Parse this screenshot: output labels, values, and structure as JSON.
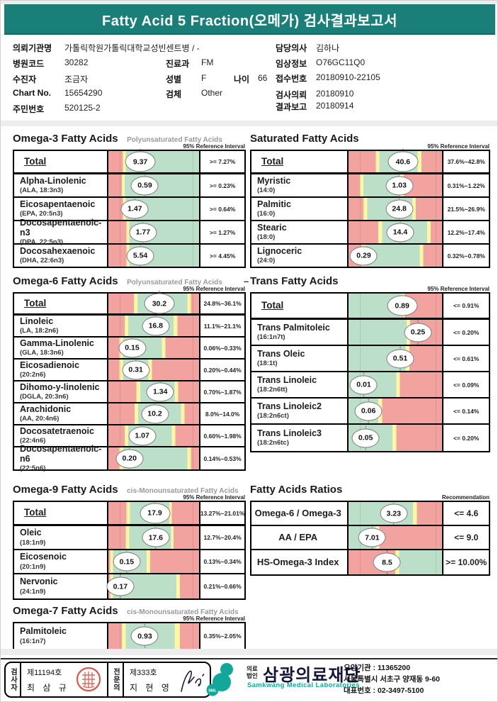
{
  "title": "Fatty Acid 5 Fraction(오메가) 검사결과보고서",
  "patient": {
    "left": [
      {
        "label": "의뢰기관명",
        "value": "가톨릭학원가톨릭대학교성빈센트병 / -"
      },
      {
        "label": "병원코드",
        "value": "30282"
      },
      {
        "label": "수진자",
        "value": "조금자"
      },
      {
        "label": "Chart No.",
        "value": "15654290"
      },
      {
        "label": "주민번호",
        "value": "520125-2"
      }
    ],
    "mid": {
      "dept_label": "진료과",
      "dept_value": "FM",
      "sex_label": "성별",
      "sex_value": "F",
      "age_label": "나이",
      "age_value": "66",
      "spec_label": "검체",
      "spec_value": "Other"
    },
    "right": [
      {
        "label": "담당의사",
        "value": "김하나"
      },
      {
        "label": "임상정보",
        "value": "O76GC11Q0"
      },
      {
        "label": "접수번호",
        "value": "20180910-22105"
      },
      {
        "label": "검사의뢰",
        "value": "20180910"
      },
      {
        "label": "결과보고",
        "value": "20180914"
      }
    ]
  },
  "colors": {
    "r": "#F2A3A0",
    "y": "#FBF7A3",
    "g": "#BBDFC9",
    "teal": "#1A7F79",
    "logo_teal": "#12A79B",
    "seal_red": "#D4392B"
  },
  "chart_data": [
    {
      "type": "table",
      "title": "Omega-3 Fatty Acids",
      "subtitle": "Polyunsaturated Fatty Acids",
      "right_label": "95% Reference Interval",
      "rows": [
        {
          "label": "Total",
          "sub": "",
          "value": "9.37",
          "ref": ">= 7.27%",
          "m": 35,
          "total": true,
          "zones": [
            [
              "r",
              16
            ],
            [
              "y",
              19
            ],
            [
              "g",
              100
            ]
          ]
        },
        {
          "label": "Alpha-Linolenic",
          "sub": "(ALA, 18:3n3)",
          "value": "0.59",
          "ref": ">= 0.23%",
          "m": 40,
          "zones": [
            [
              "r",
              15
            ],
            [
              "y",
              18
            ],
            [
              "g",
              100
            ]
          ]
        },
        {
          "label": "Eicosapentaenoic",
          "sub": "(EPA, 20:5n3)",
          "value": "1.47",
          "ref": ">= 0.64%",
          "m": 29,
          "zones": [
            [
              "r",
              16
            ],
            [
              "y",
              19
            ],
            [
              "g",
              100
            ]
          ]
        },
        {
          "label": "Docosapentaenoic-n3",
          "sub": "(DPA, 22:5n3)",
          "value": "1.77",
          "ref": ">= 1.27%",
          "m": 38,
          "zones": [
            [
              "r",
              20
            ],
            [
              "y",
              23
            ],
            [
              "g",
              100
            ]
          ]
        },
        {
          "label": "Docosahexaenoic",
          "sub": "(DHA, 22:6n3)",
          "value": "5.54",
          "ref": ">= 4.45%",
          "m": 35,
          "zones": [
            [
              "r",
              20
            ],
            [
              "y",
              23
            ],
            [
              "g",
              100
            ]
          ]
        }
      ]
    },
    {
      "type": "table",
      "title": "Saturated Fatty Acids",
      "subtitle": "",
      "right_label": "95% Reference Interval",
      "rows": [
        {
          "label": "Total",
          "sub": "",
          "value": "40.6",
          "ref": "37.6%~42.8%",
          "m": 58,
          "total": true,
          "zones": [
            [
              "r",
              29
            ],
            [
              "y",
              33
            ],
            [
              "g",
              74
            ],
            [
              "y",
              78
            ],
            [
              "r",
              100
            ]
          ]
        },
        {
          "label": "Myristic",
          "sub": "(14:0)",
          "value": "1.03",
          "ref": "0.31%~1.22%",
          "m": 54,
          "zones": [
            [
              "r",
              12
            ],
            [
              "y",
              16
            ],
            [
              "g",
              55
            ],
            [
              "y",
              59
            ],
            [
              "r",
              100
            ]
          ]
        },
        {
          "label": "Palmitic",
          "sub": "(16:0)",
          "value": "24.8",
          "ref": "21.5%~26.9%",
          "m": 54,
          "zones": [
            [
              "r",
              16
            ],
            [
              "y",
              20
            ],
            [
              "g",
              68
            ],
            [
              "y",
              72
            ],
            [
              "r",
              100
            ]
          ]
        },
        {
          "label": "Stearic",
          "sub": "(18:0)",
          "value": "14.4",
          "ref": "12.2%~17.4%",
          "m": 55,
          "zones": [
            [
              "r",
              32
            ],
            [
              "y",
              36
            ],
            [
              "g",
              84
            ],
            [
              "y",
              88
            ],
            [
              "r",
              100
            ]
          ]
        },
        {
          "label": "Lignoceric",
          "sub": "(24:0)",
          "value": "0.29",
          "ref": "0.32%~0.78%",
          "m": 16,
          "zones": [
            [
              "r",
              14
            ],
            [
              "y",
              18
            ],
            [
              "g",
              76
            ],
            [
              "y",
              80
            ],
            [
              "r",
              100
            ]
          ]
        }
      ]
    },
    {
      "type": "table",
      "title": "Omega-6 Fatty Acids",
      "subtitle": "Polyunsaturated Fatty Acids",
      "right_label": "95% Reference Interval",
      "rows": [
        {
          "label": "Total",
          "sub": "",
          "value": "30.2",
          "ref": "24.8%~36.1%",
          "m": 56,
          "total": true,
          "zones": [
            [
              "r",
              28
            ],
            [
              "y",
              32
            ],
            [
              "g",
              87
            ],
            [
              "y",
              91
            ],
            [
              "r",
              100
            ]
          ]
        },
        {
          "label": "Linoleic",
          "sub": "(LA, 18:2n6)",
          "value": "16.8",
          "ref": "11.1%~21.1%",
          "m": 52,
          "zones": [
            [
              "r",
              18
            ],
            [
              "y",
              22
            ],
            [
              "g",
              72
            ],
            [
              "y",
              76
            ],
            [
              "r",
              100
            ]
          ]
        },
        {
          "label": "Gamma-Linolenic",
          "sub": "(GLA, 18:3n6)",
          "value": "0.15",
          "ref": "0.06%~0.33%",
          "m": 26,
          "zones": [
            [
              "r",
              12
            ],
            [
              "y",
              16
            ],
            [
              "g",
              59
            ],
            [
              "y",
              63
            ],
            [
              "r",
              100
            ]
          ]
        },
        {
          "label": "Eicosadienoic",
          "sub": "(20:2n6)",
          "value": "0.31",
          "ref": "0.20%~0.44%",
          "m": 30,
          "zones": [
            [
              "r",
              12
            ],
            [
              "y",
              16
            ],
            [
              "g",
              44
            ],
            [
              "y",
              48
            ],
            [
              "r",
              100
            ]
          ]
        },
        {
          "label": "Dihomo-y-linolenic",
          "sub": "(DGLA, 20:3n6)",
          "value": "1.34",
          "ref": "0.70%~1.87%",
          "m": 57,
          "zones": [
            [
              "r",
              31
            ],
            [
              "y",
              35
            ],
            [
              "g",
              73
            ],
            [
              "y",
              77
            ],
            [
              "r",
              100
            ]
          ]
        },
        {
          "label": "Arachidonic",
          "sub": "(AA, 20:4n6)",
          "value": "10.2",
          "ref": "8.0%~14.0%",
          "m": 51,
          "zones": [
            [
              "r",
              29
            ],
            [
              "y",
              33
            ],
            [
              "g",
              80
            ],
            [
              "y",
              84
            ],
            [
              "r",
              100
            ]
          ]
        },
        {
          "label": "Docosatetraenoic",
          "sub": "(22:4n6)",
          "value": "1.07",
          "ref": "0.60%~1.98%",
          "m": 37,
          "zones": [
            [
              "r",
              18
            ],
            [
              "y",
              22
            ],
            [
              "g",
              70
            ],
            [
              "y",
              74
            ],
            [
              "r",
              100
            ]
          ]
        },
        {
          "label": "Docosapentaenoic-n6",
          "sub": "(22:5n6)",
          "value": "0.20",
          "ref": "0.14%~0.53%",
          "m": 23,
          "zones": [
            [
              "r",
              12
            ],
            [
              "y",
              16
            ],
            [
              "g",
              87
            ],
            [
              "y",
              91
            ],
            [
              "r",
              100
            ]
          ]
        }
      ]
    },
    {
      "type": "table",
      "title": "Trans Fatty Acids",
      "subtitle": "",
      "prefix": "–",
      "right_label": "95% Reference Interval",
      "rows": [
        {
          "label": "Total",
          "sub": "",
          "value": "0.89",
          "ref": "<= 0.91%",
          "m": 57,
          "total": true,
          "zones": [
            [
              "g",
              56
            ],
            [
              "y",
              60
            ],
            [
              "r",
              100
            ]
          ]
        },
        {
          "label": "Trans Palmitoleic",
          "sub": "(16:1n7t)",
          "value": "0.25",
          "ref": "<= 0.20%",
          "m": 74,
          "zones": [
            [
              "g",
              62
            ],
            [
              "y",
              66
            ],
            [
              "r",
              100
            ]
          ]
        },
        {
          "label": "Trans Oleic",
          "sub": "(18:1t)",
          "value": "0.51",
          "ref": "<= 0.61%",
          "m": 55,
          "zones": [
            [
              "g",
              61
            ],
            [
              "y",
              65
            ],
            [
              "r",
              100
            ]
          ]
        },
        {
          "label": "Trans Linoleic",
          "sub": "(18:2n6tt)",
          "value": "0.01",
          "ref": "<= 0.09%",
          "m": 16,
          "zones": [
            [
              "g",
              51
            ],
            [
              "y",
              55
            ],
            [
              "r",
              100
            ]
          ]
        },
        {
          "label": "Trans Linoleic2",
          "sub": "(18:2n6ct)",
          "value": "0.06",
          "ref": "<= 0.14%",
          "m": 21,
          "zones": [
            [
              "g",
              32
            ],
            [
              "y",
              36
            ],
            [
              "r",
              100
            ]
          ]
        },
        {
          "label": "Trans Linoleic3",
          "sub": "(18:2n6tc)",
          "value": "0.05",
          "ref": "<= 0.20%",
          "m": 18,
          "zones": [
            [
              "g",
              47
            ],
            [
              "y",
              51
            ],
            [
              "r",
              100
            ]
          ]
        }
      ]
    },
    {
      "type": "table",
      "title": "Omega-9 Fatty Acids",
      "subtitle": "cis-Monounsaturated Fatty Acids",
      "right_label": "95% Reference Interval",
      "rows": [
        {
          "label": "Total",
          "sub": "",
          "value": "17.9",
          "ref": "13.27%~21.01%",
          "m": 51,
          "total": true,
          "zones": [
            [
              "r",
              20
            ],
            [
              "y",
              24
            ],
            [
              "g",
              67
            ],
            [
              "y",
              70
            ],
            [
              "r",
              100
            ]
          ]
        },
        {
          "label": "Oleic",
          "sub": "(18:1n9)",
          "value": "17.6",
          "ref": "12.7%~20.4%",
          "m": 52,
          "zones": [
            [
              "r",
              19
            ],
            [
              "y",
              23
            ],
            [
              "g",
              69
            ],
            [
              "y",
              72
            ],
            [
              "r",
              100
            ]
          ]
        },
        {
          "label": "Eicosenoic",
          "sub": "(20:1n9)",
          "value": "0.15",
          "ref": "0.13%~0.34%",
          "m": 20,
          "zones": [
            [
              "r",
              2
            ],
            [
              "y",
              5
            ],
            [
              "g",
              42
            ],
            [
              "y",
              46
            ],
            [
              "r",
              100
            ]
          ]
        },
        {
          "label": "Nervonic",
          "sub": "(24:1n9)",
          "value": "0.17",
          "ref": "0.21%~0.66%",
          "m": 13,
          "zones": [
            [
              "r",
              2
            ],
            [
              "y",
              5
            ],
            [
              "g",
              75
            ],
            [
              "y",
              79
            ],
            [
              "r",
              100
            ]
          ]
        }
      ]
    },
    {
      "type": "table",
      "title": "Fatty Acids Ratios",
      "subtitle": "",
      "right_label": "Recommendation",
      "rows": [
        {
          "label": "Omega-6 / Omega-3",
          "sub": "",
          "value": "3.23",
          "ref": "<= 4.6",
          "m": 48,
          "zones": [
            [
              "g",
              69
            ],
            [
              "y",
              73
            ],
            [
              "r",
              100
            ]
          ]
        },
        {
          "label": "AA / EPA",
          "sub": "",
          "value": "7.01",
          "ref": "<= 9.0",
          "m": 25,
          "zones": [
            [
              "g",
              29
            ],
            [
              "y",
              33
            ],
            [
              "r",
              100
            ]
          ]
        },
        {
          "label": "HS-Omega-3 Index",
          "sub": "",
          "value": "8.5",
          "ref": ">= 10.00%",
          "m": 41,
          "zones": [
            [
              "r",
              50
            ],
            [
              "y",
              54
            ],
            [
              "g",
              100
            ]
          ]
        }
      ]
    },
    {
      "type": "table",
      "title": "Omega-7 Fatty Acids",
      "subtitle": "cis-Monounsaturated Fatty Acids",
      "right_label": "95% Reference Interval",
      "rows": [
        {
          "label": "Palmitoleic",
          "sub": "(16:1n7)",
          "value": "0.93",
          "ref": "0.35%~2.05%",
          "m": 40,
          "zones": [
            [
              "r",
              15
            ],
            [
              "y",
              19
            ],
            [
              "g",
              73
            ],
            [
              "y",
              79
            ],
            [
              "r",
              100
            ]
          ]
        }
      ]
    }
  ],
  "footer": {
    "inspector_title": "검사자",
    "inspector_no": "제11194호",
    "inspector_name": "최 삼 규",
    "specialist_title": "전문의",
    "specialist_no": "제333호",
    "specialist_name": "지 현 영",
    "logo_text": "SML",
    "org_type_1": "의료",
    "org_type_2": "법인",
    "org_name": "삼광의료재단",
    "org_name_en": "Samkwang Medical Laboratories",
    "info_lines": [
      "요양기관 : 11365200",
      "서울특별시 서초구 양재동 9-60",
      "대표번호 : 02-3497-5100"
    ]
  }
}
